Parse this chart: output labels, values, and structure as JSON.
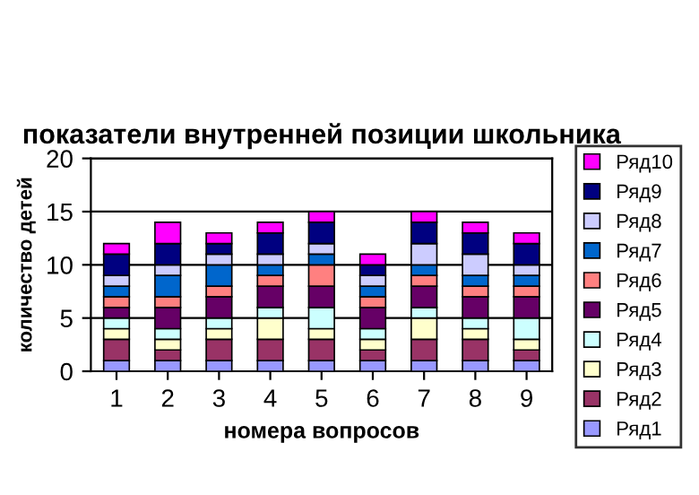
{
  "chart_data": {
    "type": "bar",
    "stacked": true,
    "title": "показатели внутренней позиции школьника",
    "xlabel": "номера вопросов",
    "ylabel": "количество детей",
    "categories": [
      "1",
      "2",
      "3",
      "4",
      "5",
      "6",
      "7",
      "8",
      "9"
    ],
    "series": [
      {
        "name": "Ряд1",
        "color": "#9999ff",
        "values": [
          1,
          1,
          1,
          1,
          1,
          1,
          1,
          1,
          1
        ]
      },
      {
        "name": "Ряд2",
        "color": "#993366",
        "values": [
          2,
          1,
          2,
          2,
          2,
          1,
          2,
          2,
          1
        ]
      },
      {
        "name": "Ряд3",
        "color": "#ffffcc",
        "values": [
          1,
          1,
          1,
          2,
          1,
          1,
          2,
          1,
          1
        ]
      },
      {
        "name": "Ряд4",
        "color": "#ccffff",
        "values": [
          1,
          1,
          1,
          1,
          2,
          1,
          1,
          1,
          2
        ]
      },
      {
        "name": "Ряд5",
        "color": "#660066",
        "values": [
          1,
          2,
          2,
          2,
          2,
          2,
          2,
          2,
          2
        ]
      },
      {
        "name": "Ряд6",
        "color": "#ff8080",
        "values": [
          1,
          1,
          1,
          1,
          2,
          1,
          1,
          1,
          1
        ]
      },
      {
        "name": "Ряд7",
        "color": "#0066cc",
        "values": [
          1,
          2,
          2,
          1,
          1,
          1,
          1,
          1,
          1
        ]
      },
      {
        "name": "Ряд8",
        "color": "#ccccff",
        "values": [
          1,
          1,
          1,
          1,
          1,
          1,
          2,
          2,
          1
        ]
      },
      {
        "name": "Ряд9",
        "color": "#000080",
        "values": [
          2,
          2,
          1,
          2,
          2,
          1,
          2,
          2,
          2
        ]
      },
      {
        "name": "Ряд10",
        "color": "#ff00ff",
        "values": [
          1,
          2,
          1,
          1,
          1,
          1,
          1,
          1,
          1
        ]
      }
    ],
    "ylim": [
      0,
      20
    ],
    "yticks": [
      0,
      5,
      10,
      15,
      20
    ],
    "grid": "y",
    "legend": "right"
  }
}
